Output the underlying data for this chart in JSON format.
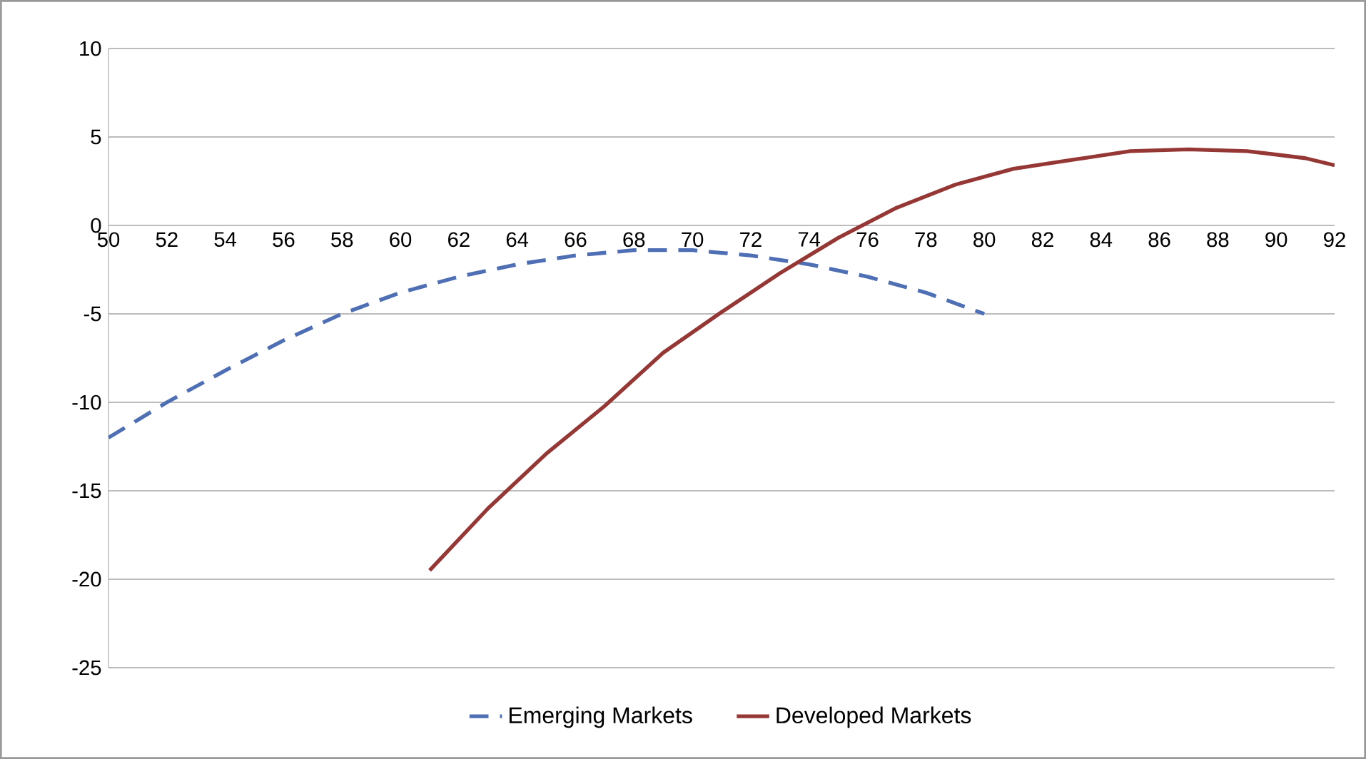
{
  "chart_data": {
    "type": "line",
    "xlim": [
      50,
      92
    ],
    "ylim": [
      -25,
      10
    ],
    "xticks": [
      50,
      52,
      54,
      56,
      58,
      60,
      62,
      64,
      66,
      68,
      70,
      72,
      74,
      76,
      78,
      80,
      82,
      84,
      86,
      88,
      90,
      92
    ],
    "yticks": [
      -25,
      -20,
      -15,
      -10,
      -5,
      0,
      5,
      10
    ],
    "grid": "y",
    "legend": "bottom",
    "marker": "none",
    "series": [
      {
        "name": "Emerging Markets",
        "color": "#4f6fb5",
        "line_style": "dashed",
        "x": [
          50,
          52,
          54,
          56,
          58,
          60,
          62,
          64,
          66,
          68,
          70,
          72,
          74,
          76,
          78,
          80
        ],
        "values": [
          -12,
          -10,
          -8.2,
          -6.5,
          -5,
          -3.8,
          -2.9,
          -2.2,
          -1.7,
          -1.4,
          -1.4,
          -1.7,
          -2.2,
          -2.9,
          -3.8,
          -5
        ]
      },
      {
        "name": "Developed Markets",
        "color": "#953735",
        "line_style": "solid",
        "x": [
          61,
          63,
          65,
          67,
          69,
          71,
          73,
          75,
          77,
          79,
          81,
          83,
          85,
          87,
          89,
          91,
          92
        ],
        "values": [
          -19.5,
          -16,
          -12.9,
          -10.2,
          -7.2,
          -4.9,
          -2.7,
          -0.7,
          1,
          2.3,
          3.2,
          3.7,
          4.2,
          4.3,
          4.2,
          3.8,
          3.4
        ]
      }
    ]
  }
}
